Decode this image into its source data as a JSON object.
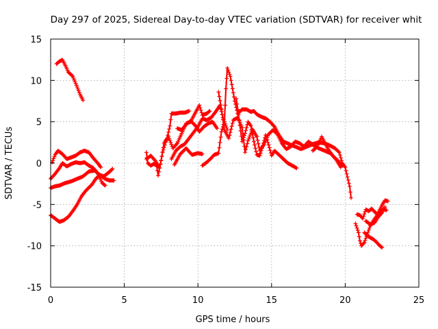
{
  "chart_data": {
    "type": "scatter",
    "title": "Day 297 of 2025, Sidereal Day-to-day VTEC variation (SDTVAR) for receiver whit",
    "xlabel": "GPS time / hours",
    "ylabel": "SDTVAR / TECUs",
    "xlim": [
      0,
      25
    ],
    "ylim": [
      -15,
      15
    ],
    "xticks": [
      0,
      5,
      10,
      15,
      20,
      25
    ],
    "yticks": [
      -15,
      -10,
      -5,
      0,
      5,
      10,
      15
    ],
    "grid": true,
    "marker": "plus",
    "color": "#ff0000",
    "series": [
      {
        "name": "trace-1",
        "points": [
          [
            0.4,
            12.0
          ],
          [
            0.6,
            12.3
          ],
          [
            0.8,
            12.5
          ],
          [
            1.0,
            11.8
          ],
          [
            1.2,
            11.0
          ],
          [
            1.5,
            10.5
          ],
          [
            1.8,
            9.2
          ],
          [
            2.0,
            8.3
          ],
          [
            2.2,
            7.6
          ]
        ]
      },
      {
        "name": "trace-2",
        "points": [
          [
            0.0,
            -6.3
          ],
          [
            0.3,
            -6.7
          ],
          [
            0.6,
            -7.1
          ],
          [
            0.9,
            -6.9
          ],
          [
            1.2,
            -6.5
          ],
          [
            1.5,
            -5.8
          ],
          [
            1.8,
            -5.0
          ],
          [
            2.1,
            -4.0
          ],
          [
            2.4,
            -3.3
          ],
          [
            2.8,
            -2.6
          ],
          [
            3.1,
            -1.8
          ],
          [
            3.4,
            -1.5
          ],
          [
            3.7,
            -1.9
          ],
          [
            4.0,
            -2.1
          ],
          [
            4.3,
            -2.1
          ]
        ]
      },
      {
        "name": "trace-3",
        "points": [
          [
            0.0,
            -3.0
          ],
          [
            0.3,
            -2.8
          ],
          [
            0.6,
            -2.7
          ],
          [
            1.0,
            -2.4
          ],
          [
            1.4,
            -2.2
          ],
          [
            1.8,
            -1.9
          ],
          [
            2.2,
            -1.6
          ],
          [
            2.6,
            -1.0
          ],
          [
            3.0,
            -0.9
          ],
          [
            3.3,
            -1.4
          ],
          [
            3.6,
            -1.6
          ],
          [
            3.9,
            -1.2
          ],
          [
            4.2,
            -0.7
          ]
        ]
      },
      {
        "name": "trace-4",
        "points": [
          [
            0.0,
            -1.9
          ],
          [
            0.3,
            -1.3
          ],
          [
            0.6,
            -0.6
          ],
          [
            0.8,
            0.0
          ],
          [
            1.1,
            -0.4
          ],
          [
            1.4,
            -0.1
          ],
          [
            1.7,
            0.1
          ],
          [
            2.0,
            0.0
          ],
          [
            2.3,
            0.1
          ],
          [
            2.6,
            -0.3
          ],
          [
            2.9,
            -0.6
          ],
          [
            3.2,
            -1.2
          ],
          [
            3.5,
            -2.4
          ],
          [
            3.7,
            -2.7
          ]
        ]
      },
      {
        "name": "trace-5",
        "points": [
          [
            0.1,
            0.1
          ],
          [
            0.3,
            1.0
          ],
          [
            0.5,
            1.5
          ],
          [
            0.8,
            1.1
          ],
          [
            1.1,
            0.5
          ],
          [
            1.4,
            0.7
          ],
          [
            1.7,
            0.9
          ],
          [
            2.0,
            1.3
          ],
          [
            2.3,
            1.5
          ],
          [
            2.6,
            1.3
          ],
          [
            2.9,
            0.6
          ],
          [
            3.2,
            0.0
          ],
          [
            3.4,
            -0.5
          ]
        ]
      },
      {
        "name": "trace-6",
        "points": [
          [
            6.5,
            1.3
          ],
          [
            6.6,
            0.0
          ],
          [
            6.8,
            -0.3
          ],
          [
            7.0,
            -0.1
          ],
          [
            7.2,
            -0.3
          ],
          [
            7.3,
            -1.5
          ],
          [
            7.5,
            0.3
          ],
          [
            7.7,
            2.4
          ],
          [
            7.9,
            3.0
          ],
          [
            8.1,
            4.5
          ],
          [
            8.2,
            6.0
          ],
          [
            8.5,
            6.0
          ],
          [
            8.8,
            6.1
          ],
          [
            9.1,
            6.1
          ],
          [
            9.4,
            6.3
          ]
        ]
      },
      {
        "name": "trace-7",
        "points": [
          [
            6.5,
            0.5
          ],
          [
            6.8,
            0.9
          ],
          [
            7.1,
            0.3
          ],
          [
            7.4,
            -0.6
          ],
          [
            7.6,
            1.3
          ],
          [
            7.8,
            2.5
          ],
          [
            8.0,
            3.2
          ],
          [
            8.3,
            1.8
          ],
          [
            8.6,
            2.4
          ],
          [
            8.9,
            3.6
          ],
          [
            9.2,
            4.8
          ],
          [
            9.5,
            5.0
          ],
          [
            9.8,
            6.0
          ],
          [
            10.1,
            7.0
          ],
          [
            10.3,
            5.8
          ],
          [
            10.6,
            6.0
          ],
          [
            10.8,
            6.3
          ]
        ]
      },
      {
        "name": "trace-8",
        "points": [
          [
            8.4,
            -0.2
          ],
          [
            8.8,
            1.1
          ],
          [
            9.2,
            1.8
          ],
          [
            9.6,
            1.0
          ],
          [
            10.0,
            1.2
          ],
          [
            10.3,
            1.1
          ]
        ]
      },
      {
        "name": "trace-9",
        "points": [
          [
            8.2,
            0.5
          ],
          [
            8.5,
            1.5
          ],
          [
            8.8,
            2.0
          ],
          [
            9.1,
            2.3
          ],
          [
            9.4,
            3.0
          ],
          [
            9.7,
            3.7
          ],
          [
            10.0,
            4.4
          ],
          [
            10.3,
            5.4
          ],
          [
            10.6,
            5.2
          ],
          [
            10.9,
            5.5
          ],
          [
            11.2,
            6.2
          ],
          [
            11.5,
            7.0
          ],
          [
            11.7,
            5.5
          ],
          [
            12.0,
            4.0
          ]
        ]
      },
      {
        "name": "trace-10",
        "points": [
          [
            8.6,
            4.2
          ],
          [
            8.9,
            4.0
          ],
          [
            9.2,
            4.7
          ],
          [
            9.5,
            5.1
          ],
          [
            9.8,
            4.6
          ],
          [
            10.1,
            3.8
          ],
          [
            10.4,
            4.4
          ],
          [
            10.7,
            4.8
          ],
          [
            11.0,
            5.0
          ],
          [
            11.3,
            4.2
          ]
        ]
      },
      {
        "name": "trace-11",
        "points": [
          [
            10.3,
            -0.3
          ],
          [
            10.6,
            0.1
          ],
          [
            10.9,
            0.6
          ],
          [
            11.1,
            1.0
          ],
          [
            11.4,
            1.2
          ],
          [
            11.6,
            3.8
          ],
          [
            11.8,
            5.0
          ],
          [
            11.9,
            9.0
          ],
          [
            12.0,
            11.5
          ],
          [
            12.2,
            10.5
          ],
          [
            12.3,
            9.5
          ],
          [
            12.5,
            7.5
          ],
          [
            12.7,
            6.0
          ],
          [
            13.0,
            6.5
          ],
          [
            13.3,
            6.5
          ],
          [
            13.6,
            6.2
          ],
          [
            13.8,
            6.3
          ],
          [
            14.0,
            5.9
          ],
          [
            14.3,
            5.6
          ],
          [
            14.6,
            5.4
          ],
          [
            14.9,
            5.0
          ],
          [
            15.2,
            4.4
          ],
          [
            15.5,
            3.4
          ],
          [
            15.8,
            2.6
          ],
          [
            16.2,
            2.3
          ],
          [
            16.6,
            2.0
          ],
          [
            17.0,
            1.7
          ],
          [
            17.4,
            2.0
          ],
          [
            17.8,
            2.3
          ],
          [
            18.2,
            2.5
          ],
          [
            18.6,
            2.4
          ],
          [
            19.0,
            2.1
          ],
          [
            19.3,
            1.8
          ],
          [
            19.6,
            1.3
          ],
          [
            19.8,
            0.0
          ],
          [
            20.0,
            -0.5
          ],
          [
            20.1,
            -1.3
          ],
          [
            20.3,
            -2.8
          ],
          [
            20.4,
            -4.2
          ]
        ]
      },
      {
        "name": "trace-12",
        "points": [
          [
            11.4,
            8.6
          ],
          [
            11.6,
            6.5
          ],
          [
            11.8,
            4.0
          ],
          [
            12.1,
            3.0
          ],
          [
            12.4,
            5.2
          ],
          [
            12.7,
            5.5
          ],
          [
            13.0,
            4.3
          ],
          [
            13.2,
            1.3
          ],
          [
            13.4,
            2.7
          ],
          [
            13.7,
            4.1
          ],
          [
            14.0,
            3.2
          ],
          [
            14.2,
            1.5
          ],
          [
            14.5,
            2.3
          ],
          [
            14.8,
            3.5
          ],
          [
            15.1,
            4.0
          ],
          [
            15.4,
            3.5
          ],
          [
            15.7,
            2.4
          ],
          [
            16.0,
            1.7
          ],
          [
            16.3,
            2.0
          ],
          [
            16.6,
            2.6
          ],
          [
            16.9,
            2.4
          ],
          [
            17.2,
            2.0
          ],
          [
            17.5,
            2.6
          ],
          [
            17.9,
            2.1
          ],
          [
            18.2,
            1.8
          ],
          [
            18.6,
            1.5
          ],
          [
            19.0,
            1.2
          ],
          [
            19.4,
            0.4
          ],
          [
            19.7,
            -0.5
          ]
        ]
      },
      {
        "name": "trace-13",
        "points": [
          [
            12.6,
            7.8
          ],
          [
            12.8,
            5.2
          ],
          [
            13.0,
            2.6
          ],
          [
            13.2,
            3.6
          ],
          [
            13.4,
            5.0
          ],
          [
            13.6,
            4.5
          ],
          [
            13.8,
            2.6
          ],
          [
            14.0,
            1.0
          ],
          [
            14.2,
            0.9
          ],
          [
            14.4,
            2.1
          ],
          [
            14.6,
            3.4
          ],
          [
            14.8,
            2.2
          ],
          [
            15.0,
            0.9
          ],
          [
            15.2,
            1.5
          ],
          [
            15.5,
            1.0
          ],
          [
            15.8,
            0.5
          ],
          [
            16.1,
            0.0
          ],
          [
            16.4,
            -0.3
          ],
          [
            16.7,
            -0.6
          ]
        ]
      },
      {
        "name": "trace-14",
        "points": [
          [
            17.8,
            1.5
          ],
          [
            18.1,
            2.0
          ],
          [
            18.4,
            3.2
          ],
          [
            18.6,
            2.5
          ],
          [
            18.9,
            1.5
          ],
          [
            19.2,
            0.8
          ],
          [
            19.5,
            0.3
          ],
          [
            19.8,
            -0.3
          ]
        ]
      },
      {
        "name": "trace-15",
        "points": [
          [
            20.7,
            -7.3
          ],
          [
            20.9,
            -8.4
          ],
          [
            21.0,
            -9.4
          ],
          [
            21.1,
            -10.0
          ],
          [
            21.3,
            -9.6
          ],
          [
            21.5,
            -8.6
          ],
          [
            21.7,
            -7.6
          ],
          [
            21.9,
            -7.0
          ],
          [
            22.1,
            -6.5
          ],
          [
            22.3,
            -5.8
          ],
          [
            22.5,
            -5.1
          ],
          [
            22.7,
            -4.5
          ],
          [
            22.9,
            -4.6
          ]
        ]
      },
      {
        "name": "trace-16",
        "points": [
          [
            20.8,
            -6.2
          ],
          [
            21.0,
            -6.3
          ],
          [
            21.2,
            -6.7
          ],
          [
            21.4,
            -5.6
          ],
          [
            21.6,
            -5.8
          ],
          [
            21.8,
            -5.5
          ],
          [
            22.0,
            -5.9
          ],
          [
            22.2,
            -6.2
          ],
          [
            22.4,
            -5.9
          ],
          [
            22.6,
            -5.5
          ],
          [
            22.8,
            -5.7
          ]
        ]
      },
      {
        "name": "trace-17",
        "points": [
          [
            21.3,
            -8.4
          ],
          [
            21.6,
            -8.9
          ],
          [
            21.9,
            -9.2
          ],
          [
            22.1,
            -9.5
          ],
          [
            22.3,
            -9.9
          ],
          [
            22.5,
            -10.2
          ]
        ]
      },
      {
        "name": "trace-18",
        "points": [
          [
            21.4,
            -7.0
          ],
          [
            21.7,
            -7.4
          ],
          [
            22.0,
            -7.2
          ],
          [
            22.2,
            -6.6
          ],
          [
            22.5,
            -6.0
          ],
          [
            22.7,
            -5.3
          ]
        ]
      }
    ]
  }
}
